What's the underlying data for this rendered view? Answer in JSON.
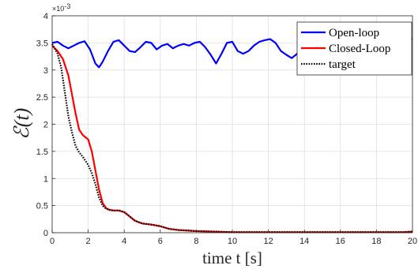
{
  "chart_data": {
    "type": "line",
    "xlabel": "time t [s]",
    "ylabel": "ℰ(t)",
    "y_exponent_label": "×10",
    "y_exponent_power": "-3",
    "xlim": [
      0,
      20
    ],
    "ylim": [
      0,
      4
    ],
    "x_ticks": [
      "0",
      "2",
      "4",
      "6",
      "8",
      "10",
      "12",
      "14",
      "16",
      "18",
      "20"
    ],
    "y_ticks": [
      "0",
      "0.5",
      "1",
      "1.5",
      "2",
      "2.5",
      "3",
      "3.5",
      "4"
    ],
    "grid": true,
    "legend_position": "top-right",
    "series": [
      {
        "name": "Open-loop",
        "color": "#0000ff",
        "style": "solid",
        "x": [
          0,
          0.3,
          0.6,
          0.9,
          1.2,
          1.5,
          1.8,
          2.1,
          2.4,
          2.6,
          2.8,
          3.1,
          3.4,
          3.7,
          4.0,
          4.3,
          4.6,
          4.9,
          5.2,
          5.5,
          5.8,
          6.1,
          6.4,
          6.7,
          7.0,
          7.3,
          7.6,
          7.9,
          8.2,
          8.5,
          8.8,
          9.1,
          9.4,
          9.7,
          10.0,
          10.3,
          10.6,
          10.9,
          11.2,
          11.5,
          11.8,
          12.1,
          12.4,
          12.7,
          13.0,
          13.3,
          13.6,
          13.9,
          14.2,
          14.5,
          14.8,
          15.1,
          15.4,
          15.7,
          16.0,
          16.3,
          16.6,
          16.9,
          17.2,
          17.5,
          17.8,
          18.1,
          18.4,
          18.7,
          19.0,
          19.3,
          19.6,
          20.0
        ],
        "y": [
          3.5,
          3.52,
          3.45,
          3.4,
          3.45,
          3.5,
          3.53,
          3.38,
          3.12,
          3.05,
          3.15,
          3.35,
          3.52,
          3.55,
          3.45,
          3.35,
          3.33,
          3.42,
          3.52,
          3.5,
          3.38,
          3.45,
          3.48,
          3.4,
          3.45,
          3.48,
          3.45,
          3.5,
          3.52,
          3.42,
          3.28,
          3.12,
          3.3,
          3.5,
          3.52,
          3.35,
          3.3,
          3.35,
          3.45,
          3.52,
          3.55,
          3.57,
          3.5,
          3.35,
          3.28,
          3.22,
          3.3,
          3.45,
          3.5,
          3.4,
          3.45,
          3.52,
          3.5,
          3.4,
          3.45,
          3.5,
          3.48,
          3.42,
          3.5,
          3.55,
          3.5,
          3.45,
          3.4,
          3.45,
          3.5,
          3.52,
          3.55,
          3.58
        ]
      },
      {
        "name": "Closed-Loop",
        "color": "#ff0000",
        "style": "solid",
        "x": [
          0,
          0.3,
          0.6,
          0.9,
          1.1,
          1.3,
          1.5,
          1.7,
          2.0,
          2.2,
          2.4,
          2.6,
          2.8,
          3.0,
          3.2,
          3.4,
          3.7,
          4.0,
          4.3,
          4.6,
          5.0,
          5.5,
          6.0,
          6.5,
          7.0,
          7.5,
          8.0,
          9.0,
          10.0,
          12.0,
          14.0,
          16.0,
          18.0,
          19.5,
          20.0
        ],
        "y": [
          3.45,
          3.35,
          3.2,
          2.9,
          2.55,
          2.2,
          1.9,
          1.8,
          1.72,
          1.5,
          1.15,
          0.8,
          0.55,
          0.45,
          0.42,
          0.41,
          0.41,
          0.38,
          0.3,
          0.22,
          0.17,
          0.15,
          0.12,
          0.07,
          0.05,
          0.04,
          0.03,
          0.02,
          0.01,
          0.01,
          0.01,
          0.01,
          0.01,
          0.01,
          0.02
        ]
      },
      {
        "name": "target",
        "color": "#000000",
        "style": "dotted",
        "x": [
          0,
          0.3,
          0.5,
          0.7,
          0.9,
          1.1,
          1.3,
          1.5,
          1.7,
          2.0,
          2.2,
          2.4,
          2.6,
          2.8,
          3.0,
          3.2,
          3.4,
          3.7,
          4.0,
          4.3,
          4.6,
          5.0,
          5.5,
          6.0,
          6.5,
          7.0,
          7.5,
          8.0,
          9.0,
          10.0,
          12.0,
          14.0,
          16.0,
          18.0,
          19.5,
          20.0
        ],
        "y": [
          3.48,
          3.3,
          3.05,
          2.6,
          2.15,
          1.85,
          1.6,
          1.48,
          1.4,
          1.25,
          1.1,
          0.9,
          0.65,
          0.5,
          0.44,
          0.42,
          0.41,
          0.41,
          0.38,
          0.3,
          0.22,
          0.17,
          0.15,
          0.12,
          0.07,
          0.05,
          0.04,
          0.03,
          0.02,
          0.01,
          0.01,
          0.01,
          0.01,
          0.01,
          0.01,
          0.02
        ]
      }
    ]
  }
}
